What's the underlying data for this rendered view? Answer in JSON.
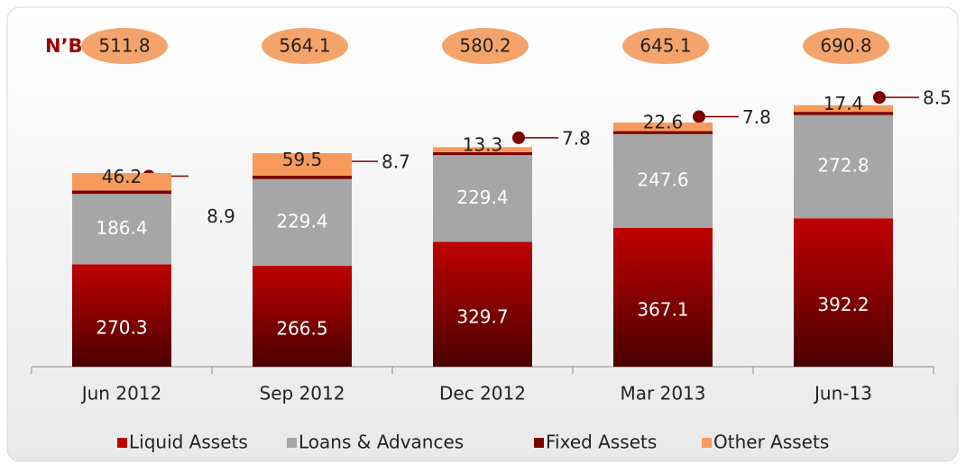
{
  "chart_data": {
    "type": "stacked_bar",
    "unit_label": "N’B",
    "categories": [
      "Jun 2012",
      "Sep 2012",
      "Dec 2012",
      "Mar 2013",
      "Jun-13"
    ],
    "series": [
      {
        "name": "Liquid Assets",
        "color": "#c00000",
        "values": [
          270.3,
          266.5,
          329.7,
          367.1,
          392.2
        ]
      },
      {
        "name": "Loans & Advances",
        "color": "#a6a6a6",
        "values": [
          186.4,
          229.4,
          229.4,
          247.6,
          272.8
        ]
      },
      {
        "name": "Fixed Assets",
        "color": "#7b0000",
        "values": [
          8.9,
          8.7,
          7.8,
          7.8,
          8.5
        ]
      },
      {
        "name": "Other Assets",
        "color": "#f79a5b",
        "values": [
          46.2,
          59.5,
          13.3,
          22.6,
          17.4
        ]
      }
    ],
    "totals": [
      511.8,
      564.1,
      580.2,
      645.1,
      690.8
    ],
    "totals_color": "#f4a46a",
    "ylim": [
      0,
      700
    ]
  }
}
